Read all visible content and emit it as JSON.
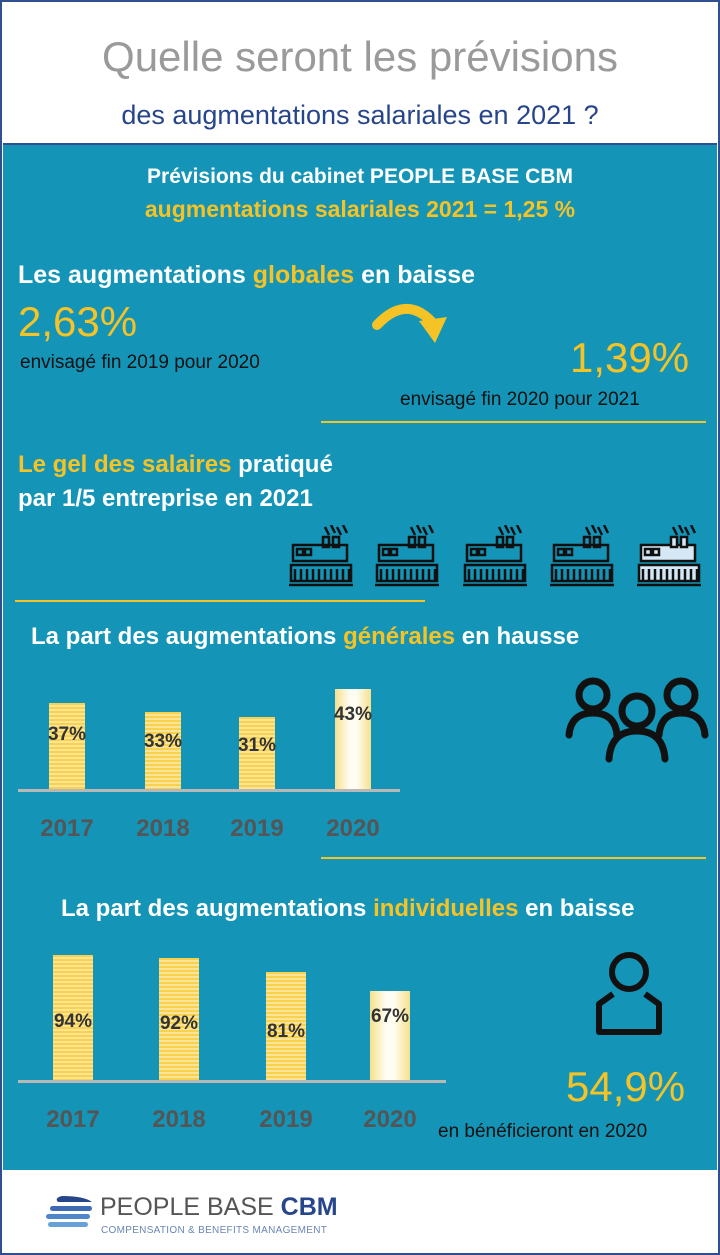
{
  "header": {
    "title": "Quelle seront les prévisions",
    "subtitle": "des augmentations salariales en 2021 ?"
  },
  "intro": {
    "line1": "Prévisions du cabinet PEOPLE BASE CBM",
    "line2": "augmentations salariales 2021 = 1,25 %"
  },
  "globales": {
    "heading_a": "Les augmentations ",
    "heading_b": "globales",
    "heading_c": " en baisse",
    "value_left": "2,63%",
    "caption_left": "envisagé fin 2019 pour 2020",
    "value_right": "1,39%",
    "caption_right": "envisagé fin 2020 pour 2021",
    "icon": "curved-arrow-down-right-icon"
  },
  "gel": {
    "heading_a": "Le gel des salaires",
    "heading_b": " pratiqué",
    "heading_c": "par 1/5 entreprise en 2021",
    "icons": [
      "factory-icon",
      "factory-icon",
      "factory-icon",
      "factory-icon",
      "factory-icon-highlighted"
    ],
    "highlighted_factories": 1,
    "total_factories": 5
  },
  "generales": {
    "heading_a": "La part des augmentations ",
    "heading_b": "générales",
    "heading_c": " en hausse",
    "icon": "group-people-icon",
    "chart_data": {
      "type": "bar",
      "categories": [
        "2017",
        "2018",
        "2019",
        "2020"
      ],
      "values": [
        37,
        33,
        31,
        43
      ],
      "labels": [
        "37%",
        "33%",
        "31%",
        "43%"
      ],
      "ylim": [
        0,
        43
      ]
    }
  },
  "individuelles": {
    "heading_a": "La part des augmentations ",
    "heading_b": "individuelles",
    "heading_c": " en baisse",
    "icon": "person-icon",
    "stat_value": "54,9%",
    "stat_caption": "en bénéficieront en 2020",
    "chart_data": {
      "type": "bar",
      "categories": [
        "2017",
        "2018",
        "2019",
        "2020"
      ],
      "values": [
        94,
        92,
        81,
        67
      ],
      "labels": [
        "94%",
        "92%",
        "81%",
        "67%"
      ],
      "ylim": [
        0,
        94
      ]
    }
  },
  "footer": {
    "brand_a": "PEOPLE BASE ",
    "brand_b": "CBM",
    "tagline": "COMPENSATION & BENEFITS MANAGEMENT",
    "logo": "stacked-lines-logo"
  },
  "colors": {
    "panel": "#1494b6",
    "accent": "#f6c326",
    "title_grey": "#9a9a9a",
    "navy": "#27458a"
  }
}
